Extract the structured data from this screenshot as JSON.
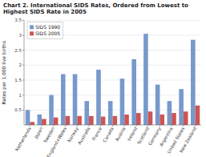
{
  "chart_data": {
    "type": "bar",
    "title": "Chart 2. International SIDS Rates, Ordered from Lowest to Highest SIDS Rate in 2005",
    "y_label": "Rates per 1,000 live births",
    "categories": [
      "Netherlands",
      "Japan",
      "Sweden",
      "England+Wales",
      "Norway",
      "Australia",
      "France",
      "Canada",
      "Austria",
      "Ireland",
      "Scotland",
      "Germany",
      "Argentina",
      "United States",
      "New Zealand"
    ],
    "series": [
      {
        "name": "SIDS 1990",
        "color": "#7799CC",
        "values": [
          0.5,
          0.35,
          1.0,
          1.7,
          1.7,
          0.8,
          1.85,
          0.8,
          1.55,
          2.2,
          3.05,
          1.35,
          0.8,
          1.2,
          2.85
        ]
      },
      {
        "name": "SIDS 2005",
        "color": "#CC5555",
        "values": [
          0.1,
          0.2,
          0.25,
          0.3,
          0.3,
          0.3,
          0.28,
          0.3,
          0.35,
          0.4,
          0.45,
          0.35,
          0.4,
          0.45,
          0.65
        ]
      }
    ],
    "ylim": [
      0,
      3.5
    ],
    "yticks": [
      0.5,
      1,
      1.5,
      2,
      2.5,
      3,
      3.5
    ],
    "grid": true,
    "legend": "upper left"
  }
}
